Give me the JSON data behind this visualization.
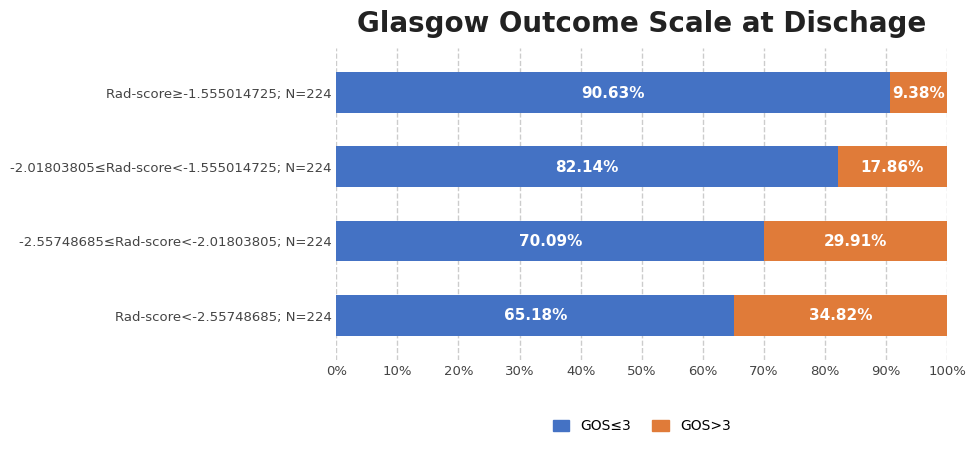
{
  "title": "Glasgow Outcome Scale at Dischage",
  "categories": [
    "Rad-score<-2.55748685; N=224",
    "-2.55748685≤Rad-score<-2.01803805; N=224",
    "-2.01803805≤Rad-score<-1.555014725; N=224",
    "Rad-score≥-1.555014725; N=224"
  ],
  "gos_le3": [
    65.18,
    70.09,
    82.14,
    90.63
  ],
  "gos_gt3": [
    34.82,
    29.91,
    17.86,
    9.38
  ],
  "color_blue": "#4472C4",
  "color_orange": "#E07B39",
  "label_blue": "GOS≤3",
  "label_orange": "GOS>3",
  "xticks": [
    0,
    10,
    20,
    30,
    40,
    50,
    60,
    70,
    80,
    90,
    100
  ],
  "background_color": "#FFFFFF",
  "grid_color": "#CCCCCC",
  "title_fontsize": 20,
  "bar_height": 0.55,
  "label_fontsize": 11,
  "tick_fontsize": 9.5,
  "legend_fontsize": 10
}
